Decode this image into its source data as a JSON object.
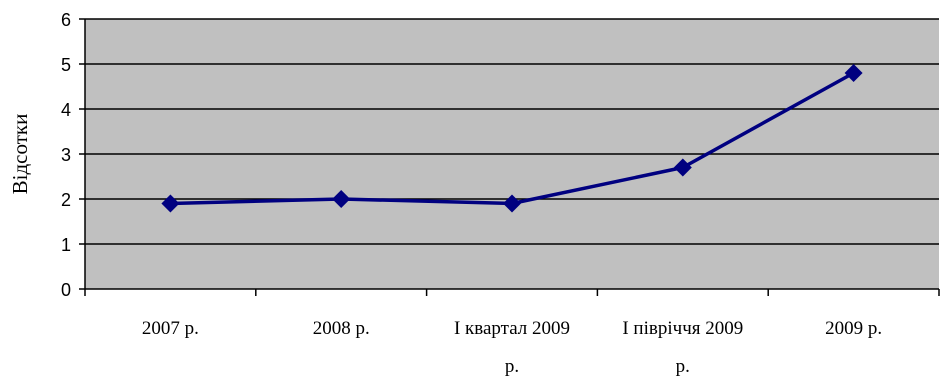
{
  "chart_data": {
    "type": "line",
    "categories": [
      "2007 р.",
      "2008 р.",
      "І квартал 2009 р.",
      "І півріччя 2009 р.",
      "2009 р."
    ],
    "category_lines": [
      [
        "2007 р."
      ],
      [
        "2008 р."
      ],
      [
        "І квартал 2009",
        "р."
      ],
      [
        "І півріччя 2009",
        "р."
      ],
      [
        "2009 р."
      ]
    ],
    "series": [
      {
        "values": [
          1.9,
          2.0,
          1.9,
          2.7,
          4.8
        ]
      }
    ],
    "title": "",
    "xlabel": "",
    "ylabel": "Відсотки",
    "ylim": [
      0,
      6
    ],
    "yticks": [
      0,
      1,
      2,
      3,
      4,
      5,
      6
    ],
    "grid": true,
    "legend": "none",
    "colors": {
      "plot_background": "#c0c0c0",
      "line": "#000080",
      "marker": "#000080",
      "gridline": "#000000"
    }
  }
}
